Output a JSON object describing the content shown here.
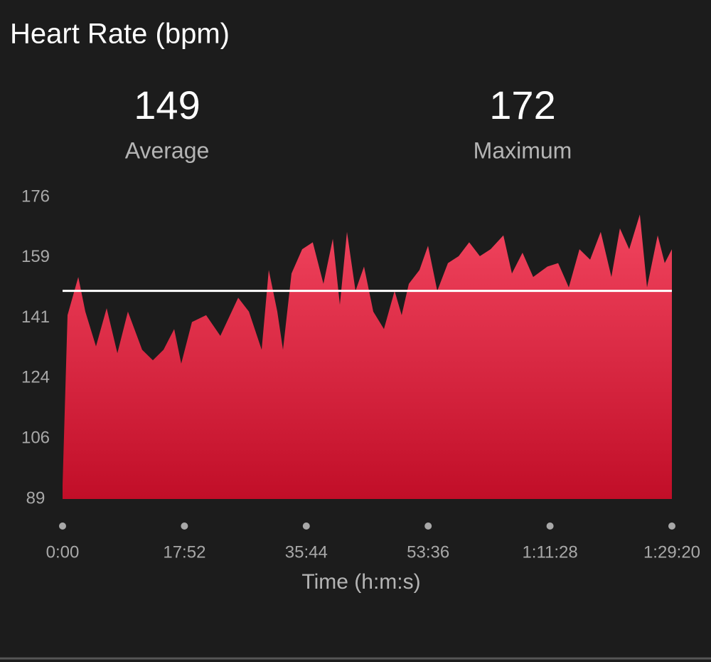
{
  "chart_data": {
    "type": "area",
    "title": "Heart Rate (bpm)",
    "stats": [
      {
        "value": 149,
        "label": "Average"
      },
      {
        "value": 172,
        "label": "Maximum"
      }
    ],
    "x": [
      0,
      44,
      138,
      200,
      294,
      388,
      482,
      575,
      700,
      794,
      888,
      982,
      1044,
      1138,
      1263,
      1388,
      1545,
      1639,
      1751,
      1814,
      1889,
      1939,
      2014,
      2108,
      2201,
      2295,
      2377,
      2439,
      2502,
      2577,
      2652,
      2733,
      2827,
      2921,
      2983,
      3046,
      3140,
      3215,
      3296,
      3390,
      3484,
      3577,
      3671,
      3765,
      3878,
      3953,
      4046,
      4140,
      4265,
      4359,
      4453,
      4547,
      4641,
      4734,
      4828,
      4903,
      4985,
      5078,
      5141,
      5235,
      5297,
      5360
    ],
    "values": [
      93,
      142,
      153,
      143,
      133,
      144,
      131,
      143,
      132,
      129,
      132,
      138,
      128,
      140,
      142,
      136,
      147,
      143,
      132,
      155,
      143,
      132,
      154,
      161,
      163,
      151,
      164,
      145,
      166,
      149,
      156,
      143,
      138,
      149,
      142,
      151,
      155,
      162,
      149,
      157,
      159,
      163,
      159,
      161,
      165,
      154,
      160,
      153,
      156,
      157,
      150,
      161,
      158,
      166,
      153,
      167,
      161,
      171,
      150,
      165,
      157,
      161
    ],
    "gradient": [
      "#f2455f",
      "#c10e28"
    ],
    "average_line_color": "#ffffff",
    "xlabel": "Time (h:m:s)",
    "xlim": [
      0,
      5360
    ],
    "xticks": [
      {
        "value": 0,
        "label": "0:00"
      },
      {
        "value": 1072,
        "label": "17:52"
      },
      {
        "value": 2144,
        "label": "35:44"
      },
      {
        "value": 3216,
        "label": "53:36"
      },
      {
        "value": 4288,
        "label": "1:11:28"
      },
      {
        "value": 5360,
        "label": "1:29:20"
      }
    ],
    "ylim": [
      89,
      176
    ],
    "yticks": [
      176,
      {
        "value": 158.6,
        "label": "159"
      },
      {
        "value": 141.2,
        "label": "141"
      },
      {
        "value": 123.8,
        "label": "124"
      },
      {
        "value": 106.4,
        "label": "106"
      },
      89
    ]
  }
}
